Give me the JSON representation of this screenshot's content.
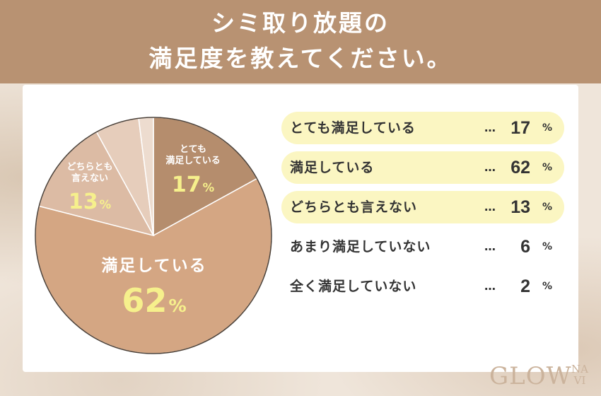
{
  "header": {
    "title_line1": "シミ取り放題の",
    "title_line2": "満足度を教えてください。"
  },
  "chart_data": {
    "type": "pie",
    "title": "シミ取り放題の満足度を教えてください。",
    "unit": "%",
    "slices": [
      {
        "label": "とても満足している",
        "value": 17,
        "color": "#b58d6d"
      },
      {
        "label": "満足している",
        "value": 62,
        "color": "#d4a683"
      },
      {
        "label": "どちらとも言えない",
        "value": 13,
        "color": "#dcbba4"
      },
      {
        "label": "あまり満足していない",
        "value": 6,
        "color": "#e6cdbb"
      },
      {
        "label": "全く満足していない",
        "value": 2,
        "color": "#eddccf"
      }
    ],
    "pie_labels": {
      "s0_line1": "とても",
      "s0_line2": "満足している",
      "s0_pct": "17",
      "s1_line1": "満足している",
      "s1_pct": "62",
      "s2_line1": "どちらとも",
      "s2_line2": "言えない",
      "s2_pct": "13",
      "pct_sign": "%"
    },
    "legend": {
      "dots": "…",
      "unit": "%",
      "rows": [
        {
          "label": "とても満足している",
          "value": "17",
          "highlight": true
        },
        {
          "label": "満足している",
          "value": "62",
          "highlight": true
        },
        {
          "label": "どちらとも言えない",
          "value": "13",
          "highlight": true
        },
        {
          "label": "あまり満足していない",
          "value": "6",
          "highlight": false
        },
        {
          "label": "全く満足していない",
          "value": "2",
          "highlight": false
        }
      ]
    }
  },
  "logo": {
    "text_main": "GLOW",
    "text_na": "NA",
    "text_vi": "VI"
  }
}
